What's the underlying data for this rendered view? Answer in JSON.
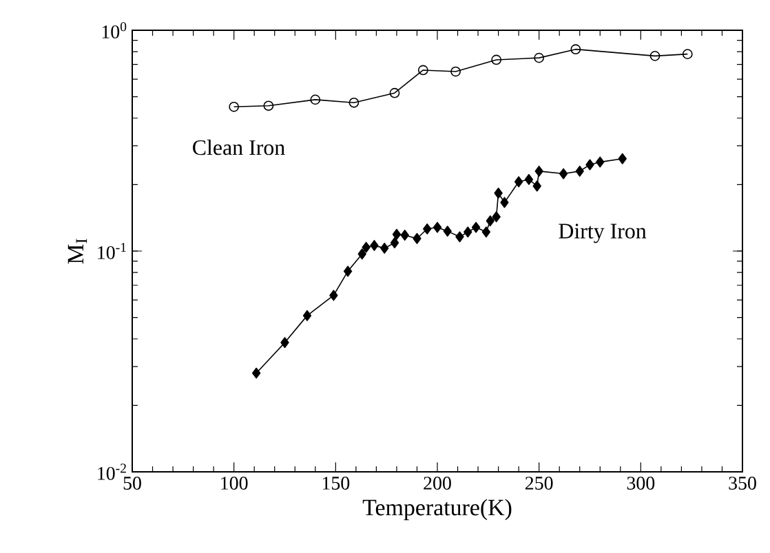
{
  "chart_data": {
    "type": "line",
    "xlabel": "Temperature(K)",
    "ylabel": "M$_{I}$",
    "log": "y",
    "xlim": [
      50,
      350
    ],
    "xticks": [
      50,
      100,
      150,
      200,
      250,
      300,
      350
    ],
    "ylim": [
      0.01,
      1
    ],
    "yticks": [
      {
        "value": 0.01,
        "label": "10$^{-2}$"
      },
      {
        "value": 0.1,
        "label": "10$^{-1}$"
      },
      {
        "value": 1,
        "label": "10$^{0}$"
      }
    ],
    "grid": false,
    "legend": false,
    "series": [
      {
        "name": "Clean Iron",
        "color": "#000000",
        "marker": "circle",
        "x": [
          100,
          117,
          140,
          159,
          179,
          193,
          209,
          229,
          250,
          268,
          307,
          323
        ],
        "values": [
          0.45,
          0.455,
          0.485,
          0.47,
          0.52,
          0.66,
          0.65,
          0.735,
          0.75,
          0.82,
          0.765,
          0.78
        ]
      },
      {
        "name": "Dirty Iron",
        "color": "#000000",
        "marker": "diamond",
        "x": [
          111,
          125,
          136,
          149,
          156,
          163,
          165,
          169,
          174,
          179,
          180,
          184,
          190,
          195,
          200,
          205,
          211,
          215,
          219,
          224,
          226,
          229,
          230,
          233,
          240,
          245,
          249,
          250,
          262,
          270,
          275,
          280,
          291
        ],
        "values": [
          0.028,
          0.0385,
          0.051,
          0.063,
          0.081,
          0.097,
          0.104,
          0.106,
          0.103,
          0.109,
          0.119,
          0.118,
          0.114,
          0.126,
          0.128,
          0.123,
          0.116,
          0.122,
          0.128,
          0.122,
          0.137,
          0.143,
          0.183,
          0.166,
          0.206,
          0.211,
          0.197,
          0.23,
          0.224,
          0.23,
          0.246,
          0.253,
          0.262
        ]
      }
    ]
  }
}
